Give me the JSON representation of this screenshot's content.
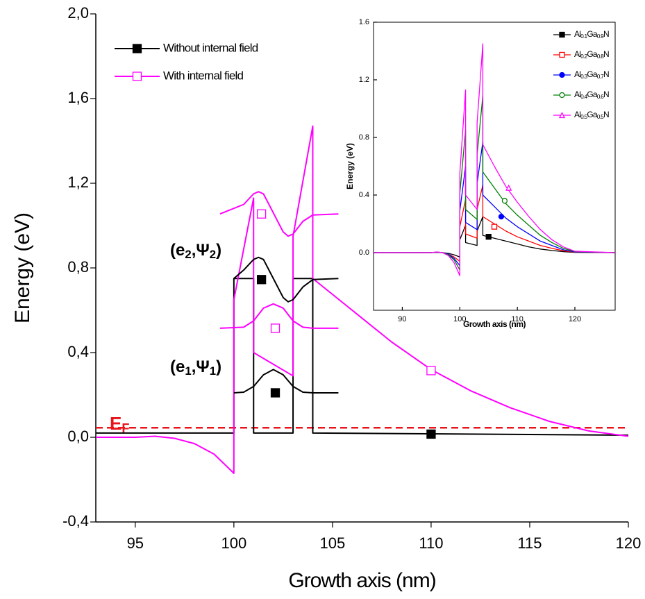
{
  "chart_data": [
    {
      "type": "line",
      "xlabel": "Growth axis (nm)",
      "ylabel": "Energy (eV)",
      "xlim": [
        93,
        120
      ],
      "ylim": [
        -0.4,
        2.0
      ],
      "xticks": [
        95,
        100,
        105,
        110,
        115,
        120
      ],
      "yticks": [
        {
          "value": -0.4,
          "label": "-0,4"
        },
        {
          "value": 0.0,
          "label": "0,0"
        },
        {
          "value": 0.4,
          "label": "0,4"
        },
        {
          "value": 0.8,
          "label": "0,8"
        },
        {
          "value": 1.2,
          "label": "1,2"
        },
        {
          "value": 1.6,
          "label": "1,6"
        },
        {
          "value": 2.0,
          "label": "2,0"
        }
      ],
      "legend": "upper left",
      "series": [
        {
          "name": "Without internal field",
          "color": "#000000",
          "x": [
            93,
            100,
            100,
            101,
            101,
            103,
            103,
            104,
            104,
            120
          ],
          "values": [
            0.02,
            0.02,
            0.75,
            0.75,
            0.02,
            0.02,
            0.75,
            0.75,
            0.02,
            0.01
          ],
          "marker": {
            "symbol": "square",
            "filled": true,
            "x": [
              101.4,
              102.1,
              110
            ],
            "y": [
              0.745,
              0.21,
              0.015
            ]
          }
        },
        {
          "name": "With internal field",
          "color": "#ff00ff",
          "x": [
            93,
            95,
            96,
            97,
            98,
            99,
            100,
            100,
            101,
            101,
            103,
            103,
            104,
            104,
            106,
            108,
            110,
            112,
            114,
            116,
            118,
            120
          ],
          "values": [
            0,
            0,
            0.005,
            -0.005,
            -0.03,
            -0.08,
            -0.17,
            0.65,
            1.13,
            0.4,
            0.29,
            0.95,
            1.47,
            0.75,
            0.6,
            0.45,
            0.32,
            0.22,
            0.14,
            0.075,
            0.03,
            0.005
          ],
          "marker": {
            "symbol": "square",
            "filled": false,
            "x": [
              101.4,
              102.1,
              110
            ],
            "y": [
              1.055,
              0.515,
              0.315
            ]
          }
        },
        {
          "color": "#000000",
          "x": [
            100,
            100.5,
            101,
            101.5,
            102,
            102.5,
            103,
            103.5,
            104,
            105.3
          ],
          "values": [
            0.21,
            0.213,
            0.24,
            0.295,
            0.32,
            0.295,
            0.24,
            0.213,
            0.21,
            0.21
          ]
        },
        {
          "color": "#ff00ff",
          "x": [
            99.3,
            100.5,
            101,
            101.5,
            102,
            102.5,
            103,
            103.5,
            104,
            105.3
          ],
          "values": [
            0.515,
            0.52,
            0.55,
            0.61,
            0.63,
            0.61,
            0.55,
            0.52,
            0.515,
            0.515
          ]
        },
        {
          "color": "#000000",
          "x": [
            100,
            100.5,
            101,
            101.25,
            101.5,
            102,
            102.5,
            102.75,
            103,
            103.5,
            104,
            105.3
          ],
          "values": [
            0.75,
            0.79,
            0.84,
            0.85,
            0.84,
            0.75,
            0.66,
            0.64,
            0.65,
            0.71,
            0.745,
            0.75
          ]
        },
        {
          "color": "#ff00ff",
          "x": [
            99.3,
            100.5,
            101,
            101.25,
            101.5,
            102,
            102.5,
            102.75,
            103,
            103.5,
            104,
            105.3
          ],
          "values": [
            1.055,
            1.1,
            1.15,
            1.16,
            1.15,
            1.06,
            0.97,
            0.95,
            0.96,
            1.02,
            1.05,
            1.055
          ]
        }
      ],
      "fermi_level": 0.045,
      "fermi_color": "#e8141b",
      "annotations": [
        {
          "parts": [
            "E",
            "F"
          ],
          "color": "#e8141b"
        },
        {
          "parts": [
            "(e",
            "1",
            ",Ψ",
            "1",
            ")"
          ],
          "color": "#000000"
        },
        {
          "parts": [
            "(e",
            "2",
            ",Ψ",
            "2",
            ")"
          ],
          "color": "#000000"
        }
      ]
    },
    {
      "type": "line",
      "xlabel": "Growth axis (nm)",
      "ylabel": "Energy (eV)",
      "xlim": [
        85,
        127
      ],
      "ylim": [
        -0.4,
        1.6
      ],
      "xticks": [
        90,
        100,
        110,
        120
      ],
      "yticks": [
        {
          "value": 0.0,
          "label": "0.0"
        },
        0.4,
        0.8,
        1.2,
        1.6
      ],
      "legend": "upper right",
      "x": [
        85,
        95,
        96,
        97,
        98,
        99,
        100,
        100,
        101,
        101,
        103,
        103,
        104,
        104,
        106,
        108,
        110,
        112,
        114,
        116,
        118,
        120,
        127
      ],
      "series": [
        {
          "name": "Al0.1Ga0.9N",
          "color": "#000000",
          "values": [
            0,
            0,
            0.002,
            0,
            -0.005,
            -0.015,
            -0.03,
            0.09,
            0.19,
            0.07,
            0.05,
            0.15,
            0.25,
            0.12,
            0.1,
            0.08,
            0.06,
            0.04,
            0.025,
            0.015,
            0.007,
            0.002,
            0
          ],
          "marker": {
            "symbol": "square",
            "filled": true,
            "x": [
              105
            ],
            "y": [
              0.11
            ]
          }
        },
        {
          "name": "Al0.2Ga0.8N",
          "color": "#ff0000",
          "values": [
            0,
            0,
            0.003,
            0,
            -0.01,
            -0.03,
            -0.06,
            0.18,
            0.37,
            0.13,
            0.1,
            0.3,
            0.47,
            0.25,
            0.2,
            0.15,
            0.11,
            0.08,
            0.05,
            0.03,
            0.013,
            0.003,
            0
          ],
          "marker": {
            "symbol": "square",
            "filled": false,
            "x": [
              106
            ],
            "y": [
              0.18
            ]
          }
        },
        {
          "name": "Al0.3Ga0.7N",
          "color": "#0000ff",
          "values": [
            0,
            0,
            0.003,
            0,
            -0.01,
            -0.04,
            -0.09,
            0.29,
            0.6,
            0.21,
            0.16,
            0.48,
            0.77,
            0.4,
            0.32,
            0.24,
            0.18,
            0.13,
            0.08,
            0.05,
            0.02,
            0.005,
            0
          ],
          "marker": {
            "symbol": "circle",
            "filled": true,
            "x": [
              107.2
            ],
            "y": [
              0.25
            ]
          }
        },
        {
          "name": "Al0.4Ga0.6N",
          "color": "#008000",
          "values": [
            0,
            0,
            0.004,
            0,
            -0.015,
            -0.05,
            -0.12,
            0.41,
            0.85,
            0.3,
            0.23,
            0.68,
            1.09,
            0.56,
            0.45,
            0.34,
            0.26,
            0.19,
            0.12,
            0.07,
            0.03,
            0.008,
            0
          ],
          "marker": {
            "symbol": "circle",
            "filled": false,
            "x": [
              107.8
            ],
            "y": [
              0.36
            ]
          }
        },
        {
          "name": "Al0.5Ga0.5N",
          "color": "#ff00ff",
          "values": [
            0,
            0,
            0.005,
            0,
            -0.02,
            -0.07,
            -0.16,
            0.55,
            1.13,
            0.4,
            0.3,
            0.9,
            1.45,
            0.75,
            0.6,
            0.46,
            0.35,
            0.25,
            0.16,
            0.09,
            0.04,
            0.01,
            0
          ],
          "marker": {
            "symbol": "triangle",
            "filled": false,
            "x": [
              108.5
            ],
            "y": [
              0.45
            ]
          }
        }
      ]
    }
  ]
}
